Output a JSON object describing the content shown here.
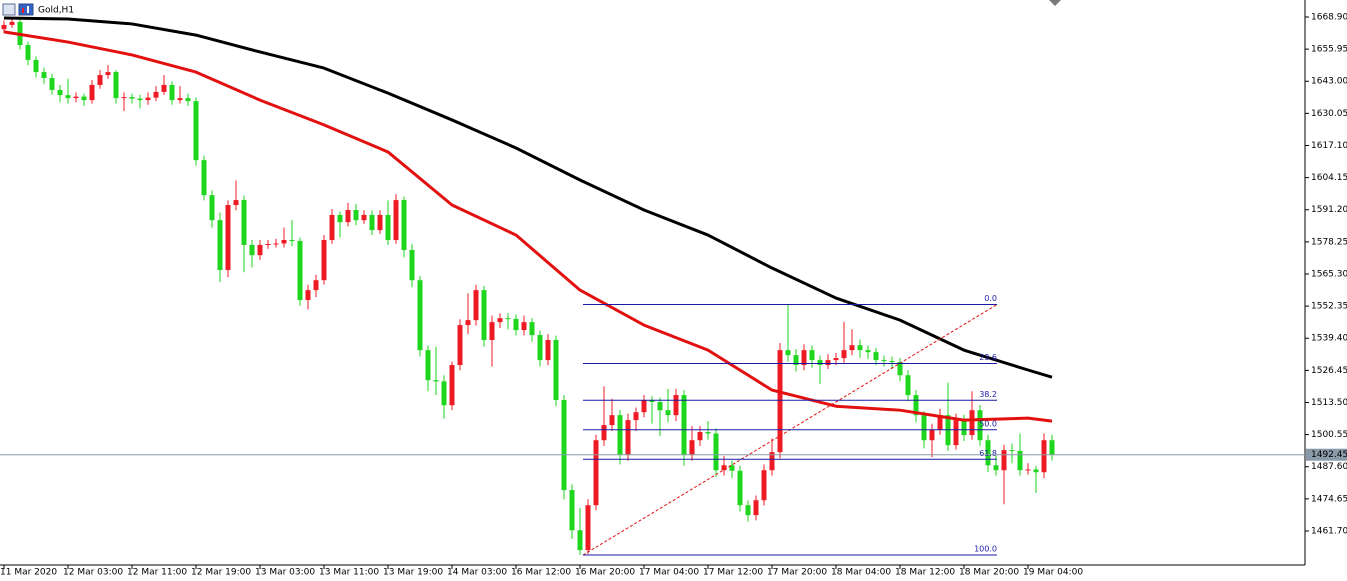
{
  "chart_data": {
    "type": "candlestick",
    "title": "Gold,H1",
    "categories": [
      "11 Mar 2020",
      null,
      null,
      null,
      null,
      null,
      null,
      null,
      "12 Mar 03:00",
      null,
      null,
      null,
      null,
      null,
      null,
      null,
      "12 Mar 11:00",
      null,
      null,
      null,
      null,
      null,
      null,
      null,
      "12 Mar 19:00",
      null,
      null,
      null,
      null,
      null,
      null,
      null,
      "13 Mar 03:00",
      null,
      null,
      null,
      null,
      null,
      null,
      null,
      "13 Mar 11:00",
      null,
      null,
      null,
      null,
      null,
      null,
      null,
      "13 Mar 19:00",
      null,
      null,
      null,
      null,
      null,
      null,
      null,
      "14 Mar 03:00",
      null,
      null,
      null,
      null,
      null,
      null,
      null,
      "16 Mar 12:00",
      null,
      null,
      null,
      null,
      null,
      null,
      null,
      "16 Mar 20:00",
      null,
      null,
      null,
      null,
      null,
      null,
      null,
      "17 Mar 04:00",
      null,
      null,
      null,
      null,
      null,
      null,
      null,
      "17 Mar 12:00",
      null,
      null,
      null,
      null,
      null,
      null,
      null,
      "17 Mar 20:00",
      null,
      null,
      null,
      null,
      null,
      null,
      null,
      "18 Mar 04:00",
      null,
      null,
      null,
      null,
      null,
      null,
      null,
      "18 Mar 12:00",
      null,
      null,
      null,
      null,
      null,
      null,
      null,
      "18 Mar 20:00",
      null,
      null,
      null,
      null,
      null,
      null,
      null,
      "19 Mar 04:00",
      null,
      null,
      null
    ],
    "open": [
      1664.0,
      1665.7,
      1666.9,
      1657.6,
      1651.6,
      1646.7,
      1644.3,
      1639.5,
      1637.4,
      1636.2,
      1636.8,
      1635.4,
      1641.5,
      1645.5,
      1646.7,
      1636.2,
      1636.6,
      1636.0,
      1635.4,
      1636.4,
      1638.7,
      1641.5,
      1635.4,
      1636.2,
      1635.0,
      1611.2,
      1597.1,
      1587.0,
      1566.9,
      1593.1,
      1595.1,
      1577.0,
      1572.9,
      1577.0,
      1577.4,
      1577.6,
      1579.0,
      1578.6,
      1554.8,
      1558.8,
      1562.8,
      1579.0,
      1589.1,
      1586.2,
      1591.1,
      1587.0,
      1589.1,
      1583.0,
      1589.1,
      1579.0,
      1595.1,
      1575.0,
      1562.8,
      1534.6,
      1522.5,
      1522.0,
      1512.4,
      1528.6,
      1544.7,
      1546.7,
      1558.8,
      1538.7,
      1545.9,
      1547.5,
      1547.2,
      1542.7,
      1545.9,
      1540.7,
      1530.6,
      1538.7,
      1514.5,
      1478.2,
      1462.0,
      1454.0,
      1472.1,
      1498.3,
      1504.4,
      1508.4,
      1492.3,
      1506.4,
      1509.6,
      1514.5,
      1513.7,
      1510.4,
      1508.4,
      1516.5,
      1492.3,
      1498.3,
      1501.6,
      1501.0,
      1486.2,
      1488.2,
      1486.0,
      1472.1,
      1468.1,
      1474.1,
      1486.2,
      1493.5,
      1534.6,
      1532.6,
      1528.6,
      1534.6,
      1530.6,
      1528.6,
      1530.6,
      1531.4,
      1534.6,
      1536.6,
      1534.6,
      1533.8,
      1530.6,
      1530.2,
      1529.8,
      1524.5,
      1516.5,
      1508.4,
      1498.3,
      1502.4,
      1508.4,
      1496.3,
      1506.4,
      1500.4,
      1510.4,
      1498.3,
      1488.2,
      1486.2,
      1494.3,
      1494.0,
      1486.2,
      1486.5,
      1485.4,
      1498.3
    ],
    "high": [
      1667.5,
      1668.9,
      1668.0,
      1659.0,
      1653.0,
      1648.5,
      1646.0,
      1641.5,
      1644.0,
      1638.5,
      1638.0,
      1643.5,
      1647.5,
      1649.5,
      1647.5,
      1638.5,
      1638.0,
      1637.5,
      1638.5,
      1641.0,
      1645.5,
      1643.0,
      1641.0,
      1638.0,
      1636.5,
      1613.0,
      1599.0,
      1590.0,
      1595.0,
      1603.0,
      1597.0,
      1579.0,
      1579.0,
      1579.0,
      1579.5,
      1584.0,
      1587.0,
      1580.0,
      1561.0,
      1565.0,
      1581.0,
      1591.5,
      1590.5,
      1594.0,
      1593.5,
      1591.0,
      1591.0,
      1591.0,
      1595.0,
      1597.5,
      1596.5,
      1577.5,
      1564.5,
      1536.5,
      1536.0,
      1524.5,
      1530.0,
      1547.0,
      1557.5,
      1561.0,
      1560.5,
      1548.5,
      1549.5,
      1549.5,
      1549.0,
      1548.5,
      1547.5,
      1542.5,
      1541.0,
      1540.5,
      1516.5,
      1480.5,
      1471.0,
      1474.5,
      1500.5,
      1520.0,
      1515.0,
      1510.5,
      1509.0,
      1511.5,
      1516.5,
      1516.0,
      1515.5,
      1519.0,
      1519.0,
      1518.5,
      1504.0,
      1504.0,
      1506.0,
      1503.0,
      1492.0,
      1490.0,
      1488.0,
      1474.0,
      1476.0,
      1488.5,
      1499.0,
      1537.5,
      1553.0,
      1535.0,
      1537.0,
      1536.5,
      1532.5,
      1533.0,
      1533.5,
      1546.0,
      1543.0,
      1539.0,
      1536.5,
      1535.5,
      1532.5,
      1532.0,
      1531.5,
      1526.5,
      1518.5,
      1510.0,
      1505.0,
      1511.0,
      1521.5,
      1509.0,
      1508.5,
      1518.0,
      1512.5,
      1500.5,
      1492.0,
      1496.5,
      1497.0,
      1501.0,
      1489.0,
      1488.0,
      1501.0,
      1500.5
    ],
    "low": [
      1662.5,
      1664.5,
      1655.8,
      1649.5,
      1644.5,
      1642.0,
      1637.5,
      1634.5,
      1634.0,
      1634.5,
      1633.0,
      1634.0,
      1640.0,
      1644.0,
      1634.0,
      1631.0,
      1634.0,
      1632.0,
      1633.5,
      1635.0,
      1637.5,
      1633.5,
      1634.0,
      1633.0,
      1609.0,
      1595.0,
      1584.0,
      1562.0,
      1564.0,
      1591.0,
      1566.0,
      1568.0,
      1571.0,
      1575.5,
      1576.0,
      1576.0,
      1576.5,
      1552.5,
      1551.0,
      1556.0,
      1561.0,
      1577.5,
      1580.0,
      1584.5,
      1585.0,
      1585.5,
      1581.0,
      1581.5,
      1577.0,
      1577.5,
      1572.0,
      1560.0,
      1532.0,
      1518.0,
      1516.5,
      1507.0,
      1510.5,
      1526.5,
      1541.0,
      1544.5,
      1536.0,
      1528.0,
      1543.5,
      1543.0,
      1540.5,
      1540.5,
      1538.0,
      1528.0,
      1528.5,
      1512.0,
      1474.5,
      1458.5,
      1452.0,
      1452.5,
      1470.0,
      1496.0,
      1502.0,
      1488.5,
      1490.0,
      1502.0,
      1507.5,
      1505.0,
      1500.0,
      1505.5,
      1506.0,
      1488.0,
      1490.0,
      1496.0,
      1498.5,
      1483.5,
      1484.0,
      1483.0,
      1469.5,
      1465.5,
      1466.0,
      1472.0,
      1484.0,
      1491.0,
      1530.0,
      1526.0,
      1526.5,
      1527.5,
      1521.0,
      1527.0,
      1528.5,
      1529.5,
      1532.5,
      1531.5,
      1531.0,
      1528.5,
      1528.0,
      1527.0,
      1522.0,
      1514.0,
      1505.5,
      1495.0,
      1491.5,
      1500.5,
      1494.0,
      1494.5,
      1498.0,
      1498.5,
      1496.0,
      1485.5,
      1484.0,
      1472.5,
      1489.0,
      1484.0,
      1484.5,
      1477.0,
      1483.0,
      1490.0
    ],
    "close": [
      1665.7,
      1666.9,
      1657.6,
      1651.6,
      1646.7,
      1644.3,
      1639.5,
      1637.4,
      1636.2,
      1636.8,
      1635.4,
      1641.5,
      1645.5,
      1646.7,
      1636.2,
      1636.6,
      1636.0,
      1635.4,
      1636.4,
      1638.7,
      1641.5,
      1635.4,
      1636.2,
      1635.0,
      1611.2,
      1597.1,
      1587.0,
      1566.9,
      1593.1,
      1595.1,
      1577.0,
      1572.9,
      1577.0,
      1577.4,
      1577.6,
      1579.0,
      1578.6,
      1554.8,
      1558.8,
      1562.8,
      1579.0,
      1589.1,
      1586.2,
      1591.1,
      1587.0,
      1589.1,
      1583.0,
      1589.1,
      1579.0,
      1595.1,
      1575.0,
      1562.8,
      1534.6,
      1522.5,
      1522.0,
      1512.4,
      1528.6,
      1544.7,
      1546.7,
      1558.8,
      1538.7,
      1545.9,
      1547.5,
      1547.2,
      1542.7,
      1545.9,
      1540.7,
      1530.6,
      1538.7,
      1514.5,
      1478.2,
      1462.0,
      1454.0,
      1472.1,
      1498.3,
      1504.4,
      1508.4,
      1492.3,
      1506.4,
      1509.6,
      1514.5,
      1513.7,
      1510.4,
      1508.4,
      1516.5,
      1492.3,
      1498.3,
      1501.6,
      1501.0,
      1486.2,
      1488.2,
      1486.0,
      1472.1,
      1468.1,
      1474.1,
      1486.2,
      1493.5,
      1534.6,
      1532.6,
      1528.6,
      1534.6,
      1530.6,
      1528.6,
      1530.6,
      1531.4,
      1534.6,
      1536.6,
      1534.6,
      1533.8,
      1530.6,
      1530.2,
      1529.8,
      1524.5,
      1516.5,
      1508.4,
      1498.3,
      1502.4,
      1508.4,
      1496.3,
      1506.4,
      1500.4,
      1510.4,
      1498.3,
      1488.2,
      1486.2,
      1494.3,
      1494.0,
      1486.2,
      1486.5,
      1485.4,
      1498.3,
      1492.45
    ],
    "up_color": "#ee1b24",
    "down_color": "#1ed61e",
    "ylim": [
      1448.8,
      1675.75
    ],
    "yticks": [
      {
        "value": 1668.9,
        "label": "1668.90"
      },
      {
        "value": 1655.95,
        "label": "1655.95"
      },
      {
        "value": 1643,
        "label": "1643.00"
      },
      {
        "value": 1630.05,
        "label": "1630.05"
      },
      {
        "value": 1617.1,
        "label": "1617.10"
      },
      {
        "value": 1604.15,
        "label": "1604.15"
      },
      {
        "value": 1591.2,
        "label": "1591.20"
      },
      {
        "value": 1578.25,
        "label": "1578.25"
      },
      {
        "value": 1565.3,
        "label": "1565.30"
      },
      {
        "value": 1552.35,
        "label": "1552.35"
      },
      {
        "value": 1539.4,
        "label": "1539.40"
      },
      {
        "value": 1526.45,
        "label": "1526.45"
      },
      {
        "value": 1513.5,
        "label": "1513.50"
      },
      {
        "value": 1500.55,
        "label": "1500.55"
      },
      {
        "value": 1487.6,
        "label": "1487.60"
      },
      {
        "value": 1474.65,
        "label": "1474.65"
      },
      {
        "value": 1461.7,
        "label": "1461.70"
      }
    ],
    "current_price": {
      "value": 1492.45,
      "label": "1492.45"
    },
    "overlays": [
      {
        "color": "#e31010",
        "x": [
          0,
          8,
          16,
          24,
          32,
          40,
          48,
          56,
          64,
          72,
          80,
          88,
          96,
          104,
          112,
          120,
          128,
          131
        ],
        "values": [
          1662.9,
          1658.8,
          1653.6,
          1646.7,
          1635.4,
          1625.4,
          1614.5,
          1593.1,
          1581.0,
          1558.8,
          1544.7,
          1534.6,
          1518.5,
          1512.0,
          1510.4,
          1506.4,
          1507.2,
          1506.0
        ]
      },
      {
        "color": "#000000",
        "x": [
          0,
          8,
          16,
          24,
          32,
          40,
          48,
          56,
          64,
          72,
          80,
          88,
          96,
          104,
          112,
          120,
          128,
          131
        ],
        "values": [
          1668.5,
          1668.1,
          1666.1,
          1661.6,
          1654.8,
          1648.3,
          1638.2,
          1627.4,
          1616.1,
          1603.2,
          1591.1,
          1581.0,
          1567.7,
          1555.6,
          1546.7,
          1534.6,
          1526.6,
          1523.7
        ]
      }
    ],
    "fibonacci": {
      "color": "#1a1aa6",
      "trend_color": "#e31010",
      "levels": [
        {
          "value": 1553.0,
          "label": "0.0"
        },
        {
          "value": 1529.2,
          "label": "23.6"
        },
        {
          "value": 1514.4,
          "label": "38.2"
        },
        {
          "value": 1502.5,
          "label": "50.0"
        },
        {
          "value": 1490.6,
          "label": "61.8"
        },
        {
          "value": 1452.0,
          "label": "100.0"
        }
      ]
    }
  }
}
